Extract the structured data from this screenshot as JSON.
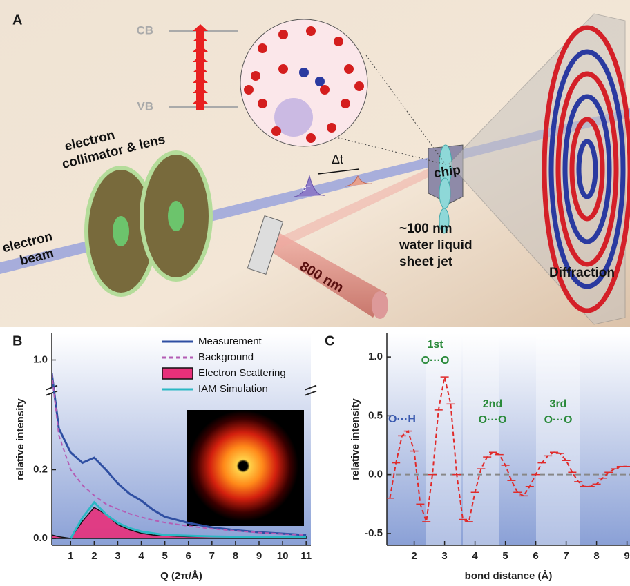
{
  "diagram": {
    "label": "A",
    "levels": [
      "CB",
      "VB"
    ],
    "collimator": [
      "electron",
      "collimator & lens"
    ],
    "beam": [
      "electron",
      "beam"
    ],
    "delay": "Δt",
    "pulse": "e⁻",
    "laser": "800 nm",
    "chip": "chip",
    "jet": [
      "~100 nm",
      "water liquid",
      "sheet jet"
    ],
    "detector": "Diffraction"
  },
  "chart_data": [
    {
      "type": "line",
      "label": "B",
      "ylabel": "relative intensity",
      "xlabel": "Q (2π/Å)",
      "x": [
        0.2,
        0.5,
        1,
        1.5,
        2,
        2.5,
        3,
        3.5,
        4,
        4.5,
        5,
        6,
        7,
        8,
        9,
        10,
        11
      ],
      "series": [
        {
          "name": "Measurement",
          "color": "#2f4fa2",
          "style": "solid",
          "values": [
            0.95,
            0.32,
            0.25,
            0.22,
            0.235,
            0.2,
            0.16,
            0.13,
            0.11,
            0.083,
            0.063,
            0.045,
            0.032,
            0.024,
            0.018,
            0.014,
            0.01
          ]
        },
        {
          "name": "Background",
          "color": "#b45cb4",
          "style": "dashed",
          "values": [
            0.95,
            0.3,
            0.2,
            0.155,
            0.125,
            0.1,
            0.085,
            0.072,
            0.062,
            0.053,
            0.046,
            0.036,
            0.028,
            0.022,
            0.017,
            0.013,
            0.01
          ]
        },
        {
          "name": "Electron Scattering",
          "color": "#e8307a",
          "style": "area",
          "values": [
            0.01,
            0.005,
            0.0,
            0.05,
            0.09,
            0.07,
            0.04,
            0.025,
            0.015,
            0.01,
            0.008,
            0.005,
            0.005,
            0.005,
            0.005,
            0.005,
            0.005
          ]
        },
        {
          "name": "IAM Simulation",
          "color": "#2bb8c4",
          "style": "solid",
          "values": [
            null,
            null,
            0.0,
            0.06,
            0.105,
            0.07,
            0.045,
            0.03,
            0.02,
            0.015,
            0.01,
            0.008,
            0.006,
            0.005,
            0.005,
            0.005,
            0.005
          ]
        }
      ],
      "xlim": [
        0.2,
        11.2
      ],
      "xticks": [
        1,
        2,
        3,
        4,
        5,
        6,
        7,
        8,
        9,
        10,
        11
      ],
      "ylim": [
        -0.02,
        1.1
      ],
      "ybreak": [
        0.42,
        0.9
      ],
      "yticks": [
        {
          "value": 0,
          "label": "0.0"
        },
        0.2,
        {
          "value": 1,
          "label": "1.0"
        }
      ],
      "legend": "top-right"
    },
    {
      "type": "line",
      "label": "C",
      "ylabel": "relative intensity",
      "xlabel": "bond distance (Å)",
      "x": [
        1.2,
        1.4,
        1.6,
        1.8,
        2.0,
        2.2,
        2.4,
        2.6,
        2.8,
        3.0,
        3.2,
        3.4,
        3.6,
        3.8,
        4.0,
        4.2,
        4.4,
        4.6,
        4.8,
        5.0,
        5.2,
        5.4,
        5.6,
        5.8,
        6.0,
        6.2,
        6.4,
        6.6,
        6.8,
        7.0,
        7.2,
        7.4,
        7.6,
        7.8,
        8.0,
        8.2,
        8.4,
        8.6,
        8.8,
        9.0
      ],
      "series": [
        {
          "color": "#e02a2a",
          "style": "dashed-marker",
          "values": [
            -0.2,
            0.1,
            0.33,
            0.37,
            0.2,
            -0.25,
            -0.4,
            0.0,
            0.55,
            0.83,
            0.6,
            0.0,
            -0.38,
            -0.4,
            -0.15,
            0.05,
            0.15,
            0.19,
            0.17,
            0.08,
            -0.05,
            -0.15,
            -0.18,
            -0.1,
            0.0,
            0.1,
            0.16,
            0.19,
            0.18,
            0.12,
            0.02,
            -0.06,
            -0.1,
            -0.1,
            -0.08,
            -0.03,
            0.02,
            0.05,
            0.07,
            0.07
          ]
        }
      ],
      "annotations": [
        "O···H",
        "1st",
        "O···O",
        "2nd",
        "O···O",
        "3rd",
        "O···O"
      ],
      "xlim": [
        1.1,
        9.1
      ],
      "xticks": [
        2,
        3,
        4,
        5,
        6,
        7,
        8,
        9
      ],
      "ylim": [
        -0.6,
        1.2
      ],
      "yticks": [
        -0.5,
        {
          "value": 0,
          "label": "0.0"
        },
        0.5,
        {
          "value": 1,
          "label": "1.0"
        }
      ],
      "zero_line": true
    }
  ]
}
